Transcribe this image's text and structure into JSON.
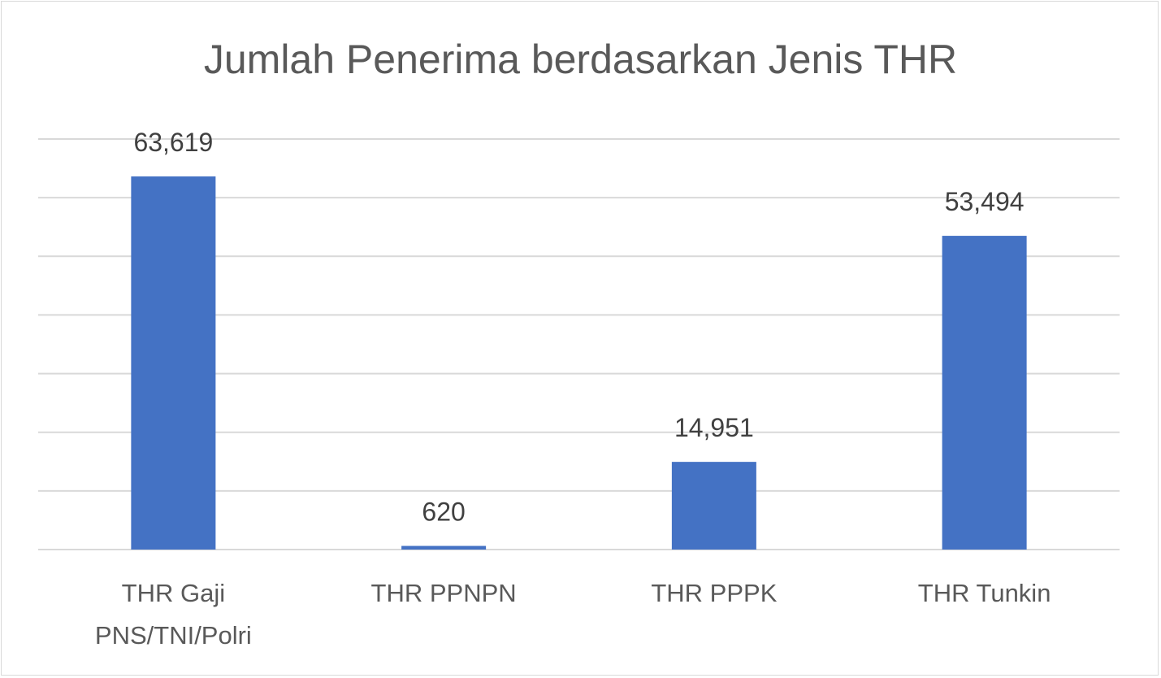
{
  "chart_data": {
    "type": "bar",
    "title": "Jumlah Penerima berdasarkan Jenis THR",
    "categories": [
      [
        "THR Gaji",
        "PNS/TNI/Polri"
      ],
      [
        "THR PPNPN"
      ],
      [
        "THR PPPK"
      ],
      [
        "THR Tunkin"
      ]
    ],
    "values": [
      63619,
      620,
      14951,
      53494
    ],
    "data_labels": [
      "63,619",
      "620",
      "14,951",
      "53,494"
    ],
    "xlabel": "",
    "ylabel": "",
    "ylim": [
      0,
      70000
    ],
    "ytick_step": 10000,
    "y_tick_labels_shown": false,
    "grid": true,
    "legend": "none",
    "colors": {
      "bar": "#4472C4",
      "grid": "#d9d9d9",
      "text": "#595959"
    }
  }
}
